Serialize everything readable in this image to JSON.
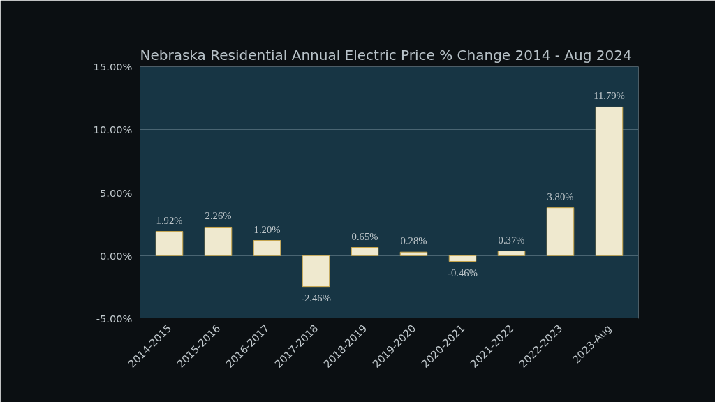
{
  "chart_data": {
    "type": "bar",
    "title": "Nebraska Residential Annual Electric Price % Change 2014 - Aug 2024",
    "categories": [
      "2014-2015",
      "2015-2016",
      "2016-2017",
      "2017-2018",
      "2018-2019",
      "2019-2020",
      "2020-2021",
      "2021-2022",
      "2022-2023",
      "2023-Aug"
    ],
    "values": [
      1.92,
      2.26,
      1.2,
      -2.46,
      0.65,
      0.28,
      -0.46,
      0.37,
      3.8,
      11.79
    ],
    "value_labels": [
      "1.92%",
      "2.26%",
      "1.20%",
      "-2.46%",
      "0.65%",
      "0.28%",
      "-0.46%",
      "0.37%",
      "3.80%",
      "11.79%"
    ],
    "color": "#efe9cf",
    "ylim": [
      -5,
      15
    ],
    "yticks": [
      {
        "value": -5,
        "label": "-5.00%"
      },
      {
        "value": 0,
        "label": "0.00%"
      },
      {
        "value": 5,
        "label": "5.00%"
      },
      {
        "value": 10,
        "label": "10.00%"
      },
      {
        "value": 15,
        "label": "15.00%"
      }
    ],
    "grid": "y"
  }
}
